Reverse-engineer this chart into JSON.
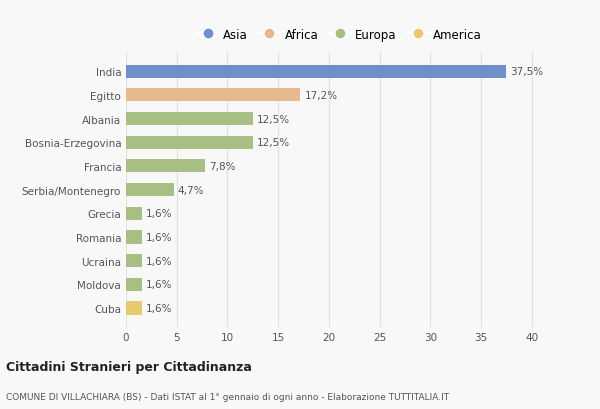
{
  "categories": [
    "India",
    "Egitto",
    "Albania",
    "Bosnia-Erzegovina",
    "Francia",
    "Serbia/Montenegro",
    "Grecia",
    "Romania",
    "Ucraina",
    "Moldova",
    "Cuba"
  ],
  "values": [
    37.5,
    17.2,
    12.5,
    12.5,
    7.8,
    4.7,
    1.6,
    1.6,
    1.6,
    1.6,
    1.6
  ],
  "labels": [
    "37,5%",
    "17,2%",
    "12,5%",
    "12,5%",
    "7,8%",
    "4,7%",
    "1,6%",
    "1,6%",
    "1,6%",
    "1,6%",
    "1,6%"
  ],
  "colors": [
    "#6e8fc9",
    "#e8b88e",
    "#a8bf84",
    "#a8bf84",
    "#a8bf84",
    "#a8bf84",
    "#a8bf84",
    "#a8bf84",
    "#a8bf84",
    "#a8bf84",
    "#e8c96e"
  ],
  "legend_labels": [
    "Asia",
    "Africa",
    "Europa",
    "America"
  ],
  "legend_colors": [
    "#6e8fc9",
    "#e8b88e",
    "#a8bf84",
    "#e8c96e"
  ],
  "xlim": [
    0,
    42
  ],
  "xticks": [
    0,
    5,
    10,
    15,
    20,
    25,
    30,
    35,
    40
  ],
  "title": "Cittadini Stranieri per Cittadinanza",
  "subtitle": "COMUNE DI VILLACHIARA (BS) - Dati ISTAT al 1° gennaio di ogni anno - Elaborazione TUTTITALIA.IT",
  "background_color": "#f8f8f8",
  "grid_color": "#e0e0e0",
  "bar_height": 0.55
}
